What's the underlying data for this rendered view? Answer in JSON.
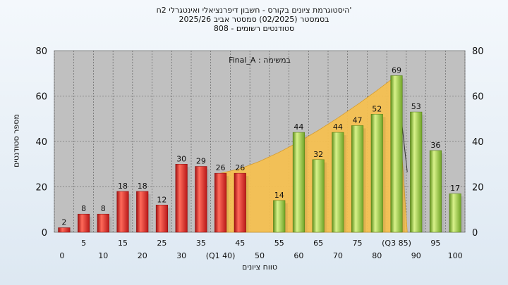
{
  "chart_data": {
    "type": "bar",
    "title": "'היסטוגרמת ציונים בקורס - חשבון דיפרנציאלי ואינטגרלי 2ח",
    "subtitle": "בסמסטר  (02/2025)  סמסטר אביב 2025/26",
    "subtitle2": "סטודנטים רשומים - 808",
    "task_label": "במשימה : Final_A",
    "xlabel": "טווח ציונים",
    "ylabel": "מספר סטודנטים",
    "ylim": [
      0,
      80
    ],
    "yticks": [
      "0",
      "20",
      "40",
      "60",
      "80"
    ],
    "xtick_labels": [
      "0",
      "5",
      "10",
      "15",
      "20",
      "25",
      "30",
      "35",
      "(Q1 40)",
      "45",
      "50",
      "55",
      "60",
      "65",
      "70",
      "75",
      "80",
      "(Q3 85)",
      "90",
      "95",
      "100"
    ],
    "categories": [
      "0",
      "5",
      "10",
      "15",
      "20",
      "25",
      "30",
      "35",
      "40",
      "45",
      "50",
      "55",
      "60",
      "65",
      "70",
      "75",
      "80",
      "85",
      "90",
      "95",
      "100"
    ],
    "values": [
      2,
      8,
      8,
      18,
      18,
      12,
      30,
      29,
      26,
      26,
      0,
      14,
      44,
      32,
      44,
      47,
      52,
      69,
      53,
      36,
      17
    ],
    "value_labels": [
      "2",
      "8",
      "8",
      "18",
      "18",
      "12",
      "30",
      "29",
      "26",
      "26",
      "",
      "14",
      "44",
      "32",
      "44",
      "47",
      "52",
      "69",
      "53",
      "36",
      "17"
    ],
    "fail_threshold_index": 10,
    "colors": {
      "fail_bar": "#d42a2a",
      "pass_bar": "#8cc63f",
      "area": "#f7c14f",
      "plot_bg": "#c0c0c0",
      "grid": "#555555"
    }
  }
}
